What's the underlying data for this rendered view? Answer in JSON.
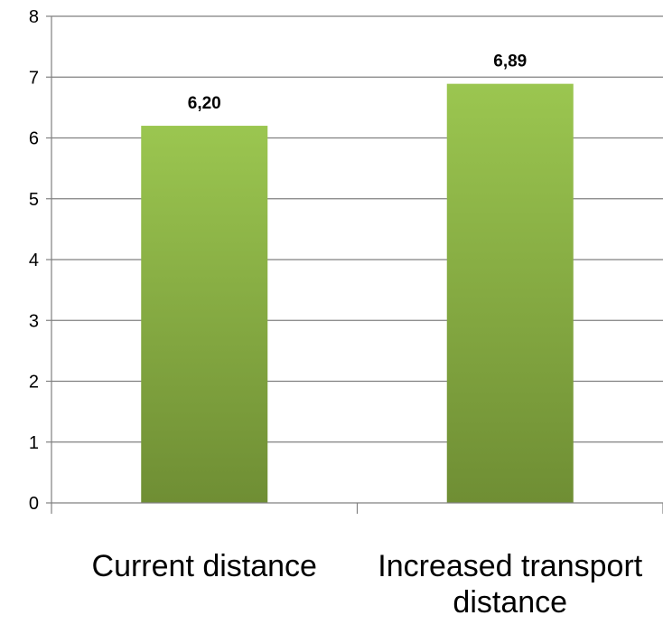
{
  "chart_data": {
    "type": "bar",
    "categories": [
      "Current distance",
      "Increased transport distance"
    ],
    "category_label_lines": [
      [
        "Current distance"
      ],
      [
        "Increased transport",
        "distance"
      ]
    ],
    "values": [
      6.2,
      6.89
    ],
    "data_labels": [
      "6,20",
      "6,89"
    ],
    "title": "",
    "xlabel": "",
    "ylabel": "",
    "ylim": [
      0,
      8
    ],
    "yticks": [
      0,
      1,
      2,
      3,
      4,
      5,
      6,
      7,
      8
    ],
    "grid": true,
    "legend": "none",
    "colors": {
      "bar_top": "#9bc650",
      "bar_bottom": "#6f8e34",
      "grid": "#808080",
      "axis": "#808080"
    }
  }
}
